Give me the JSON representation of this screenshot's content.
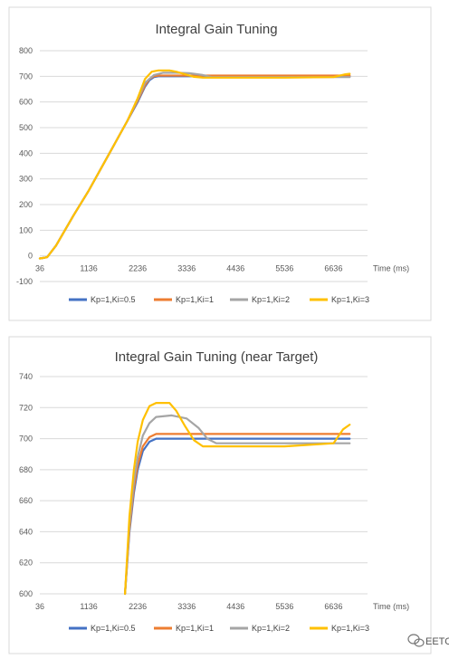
{
  "colors": {
    "Kp=1,Ki=0.5": "#4472C4",
    "Kp=1,Ki=1": "#ED7D31",
    "Kp=1,Ki=2": "#A5A5A5",
    "Kp=1,Ki=3": "#FFC000"
  },
  "watermark": {
    "text": "EETOP",
    "icon": "wechat-logo-icon"
  },
  "chart_data": [
    {
      "type": "line",
      "title": "Integral Gain Tuning",
      "xlabel": "Time (ms)",
      "ylabel": "",
      "x_ticks": [
        "36",
        "1136",
        "2236",
        "3336",
        "4436",
        "5536",
        "6636"
      ],
      "y_ticks": [
        "-100",
        "0",
        "100",
        "200",
        "300",
        "400",
        "500",
        "600",
        "700",
        "800"
      ],
      "xlim": [
        36,
        7400
      ],
      "ylim": [
        -100,
        800
      ],
      "grid": true,
      "legend_position": "bottom",
      "series": [
        {
          "name": "Kp=1,Ki=0.5",
          "points": [
            [
              36,
              -10
            ],
            [
              120,
              -8
            ],
            [
              200,
              -5
            ],
            [
              400,
              40
            ],
            [
              800,
              160
            ],
            [
              1136,
              255
            ],
            [
              1600,
              400
            ],
            [
              2000,
              525
            ],
            [
              2236,
              600
            ],
            [
              2400,
              660
            ],
            [
              2500,
              685
            ],
            [
              2600,
              697
            ],
            [
              2700,
              700
            ],
            [
              3336,
              700
            ],
            [
              4436,
              700
            ],
            [
              5536,
              700
            ],
            [
              6636,
              700
            ],
            [
              7000,
              700
            ]
          ]
        },
        {
          "name": "Kp=1,Ki=1",
          "points": [
            [
              36,
              -10
            ],
            [
              120,
              -8
            ],
            [
              200,
              -5
            ],
            [
              400,
              40
            ],
            [
              800,
              160
            ],
            [
              1136,
              255
            ],
            [
              1600,
              400
            ],
            [
              2000,
              525
            ],
            [
              2236,
              605
            ],
            [
              2400,
              665
            ],
            [
              2500,
              690
            ],
            [
              2600,
              700
            ],
            [
              2700,
              703
            ],
            [
              3336,
              703
            ],
            [
              4436,
              703
            ],
            [
              5536,
              703
            ],
            [
              6636,
              703
            ],
            [
              7000,
              703
            ]
          ]
        },
        {
          "name": "Kp=1,Ki=2",
          "points": [
            [
              36,
              -10
            ],
            [
              120,
              -8
            ],
            [
              200,
              -5
            ],
            [
              400,
              40
            ],
            [
              800,
              160
            ],
            [
              1136,
              255
            ],
            [
              1600,
              400
            ],
            [
              2000,
              525
            ],
            [
              2236,
              610
            ],
            [
              2400,
              675
            ],
            [
              2600,
              705
            ],
            [
              2800,
              714
            ],
            [
              3100,
              714
            ],
            [
              3400,
              712
            ],
            [
              3700,
              705
            ],
            [
              3900,
              697
            ],
            [
              4436,
              697
            ],
            [
              5536,
              697
            ],
            [
              6636,
              697
            ],
            [
              7000,
              697
            ]
          ]
        },
        {
          "name": "Kp=1,Ki=3",
          "points": [
            [
              36,
              -10
            ],
            [
              120,
              -8
            ],
            [
              200,
              -5
            ],
            [
              400,
              40
            ],
            [
              800,
              160
            ],
            [
              1136,
              255
            ],
            [
              1600,
              400
            ],
            [
              2000,
              525
            ],
            [
              2236,
              615
            ],
            [
              2400,
              690
            ],
            [
              2550,
              718
            ],
            [
              2700,
              723
            ],
            [
              2950,
              723
            ],
            [
              3100,
              718
            ],
            [
              3300,
              708
            ],
            [
              3500,
              698
            ],
            [
              3700,
              695
            ],
            [
              4436,
              695
            ],
            [
              5536,
              695
            ],
            [
              6636,
              697
            ],
            [
              6900,
              708
            ],
            [
              7000,
              710
            ]
          ]
        }
      ]
    },
    {
      "type": "line",
      "title": "Integral Gain Tuning (near Target)",
      "xlabel": "Time (ms)",
      "ylabel": "",
      "x_ticks": [
        "36",
        "1136",
        "2236",
        "3336",
        "4436",
        "5536",
        "6636"
      ],
      "y_ticks": [
        "600",
        "620",
        "640",
        "660",
        "680",
        "700",
        "720",
        "740"
      ],
      "xlim": [
        36,
        7400
      ],
      "ylim": [
        600,
        740
      ],
      "grid": true,
      "legend_position": "bottom",
      "series": [
        {
          "name": "Kp=1,Ki=0.5",
          "points": [
            [
              1950,
              600
            ],
            [
              2050,
              640
            ],
            [
              2150,
              665
            ],
            [
              2236,
              680
            ],
            [
              2350,
              692
            ],
            [
              2500,
              698
            ],
            [
              2650,
              700
            ],
            [
              3000,
              700
            ],
            [
              3336,
              700
            ],
            [
              4436,
              700
            ],
            [
              5536,
              700
            ],
            [
              6636,
              700
            ],
            [
              7000,
              700
            ]
          ]
        },
        {
          "name": "Kp=1,Ki=1",
          "points": [
            [
              1950,
              600
            ],
            [
              2050,
              642
            ],
            [
              2150,
              668
            ],
            [
              2236,
              683
            ],
            [
              2350,
              695
            ],
            [
              2500,
              701
            ],
            [
              2650,
              703
            ],
            [
              3000,
              703
            ],
            [
              3336,
              703
            ],
            [
              4436,
              703
            ],
            [
              5536,
              703
            ],
            [
              6636,
              703
            ],
            [
              7000,
              703
            ]
          ]
        },
        {
          "name": "Kp=1,Ki=2",
          "points": [
            [
              1950,
              600
            ],
            [
              2050,
              645
            ],
            [
              2150,
              672
            ],
            [
              2236,
              688
            ],
            [
              2350,
              702
            ],
            [
              2500,
              710
            ],
            [
              2650,
              714
            ],
            [
              3000,
              715
            ],
            [
              3336,
              713
            ],
            [
              3600,
              707
            ],
            [
              3800,
              700
            ],
            [
              4000,
              697
            ],
            [
              4436,
              697
            ],
            [
              5536,
              697
            ],
            [
              6636,
              697
            ],
            [
              7000,
              697
            ]
          ]
        },
        {
          "name": "Kp=1,Ki=3",
          "points": [
            [
              1950,
              600
            ],
            [
              2050,
              650
            ],
            [
              2150,
              680
            ],
            [
              2236,
              698
            ],
            [
              2350,
              712
            ],
            [
              2500,
              721
            ],
            [
              2650,
              723
            ],
            [
              2950,
              723
            ],
            [
              3100,
              718
            ],
            [
              3300,
              708
            ],
            [
              3500,
              699
            ],
            [
              3700,
              695
            ],
            [
              4436,
              695
            ],
            [
              5536,
              695
            ],
            [
              6636,
              697
            ],
            [
              6850,
              706
            ],
            [
              7000,
              709
            ]
          ]
        }
      ]
    }
  ]
}
